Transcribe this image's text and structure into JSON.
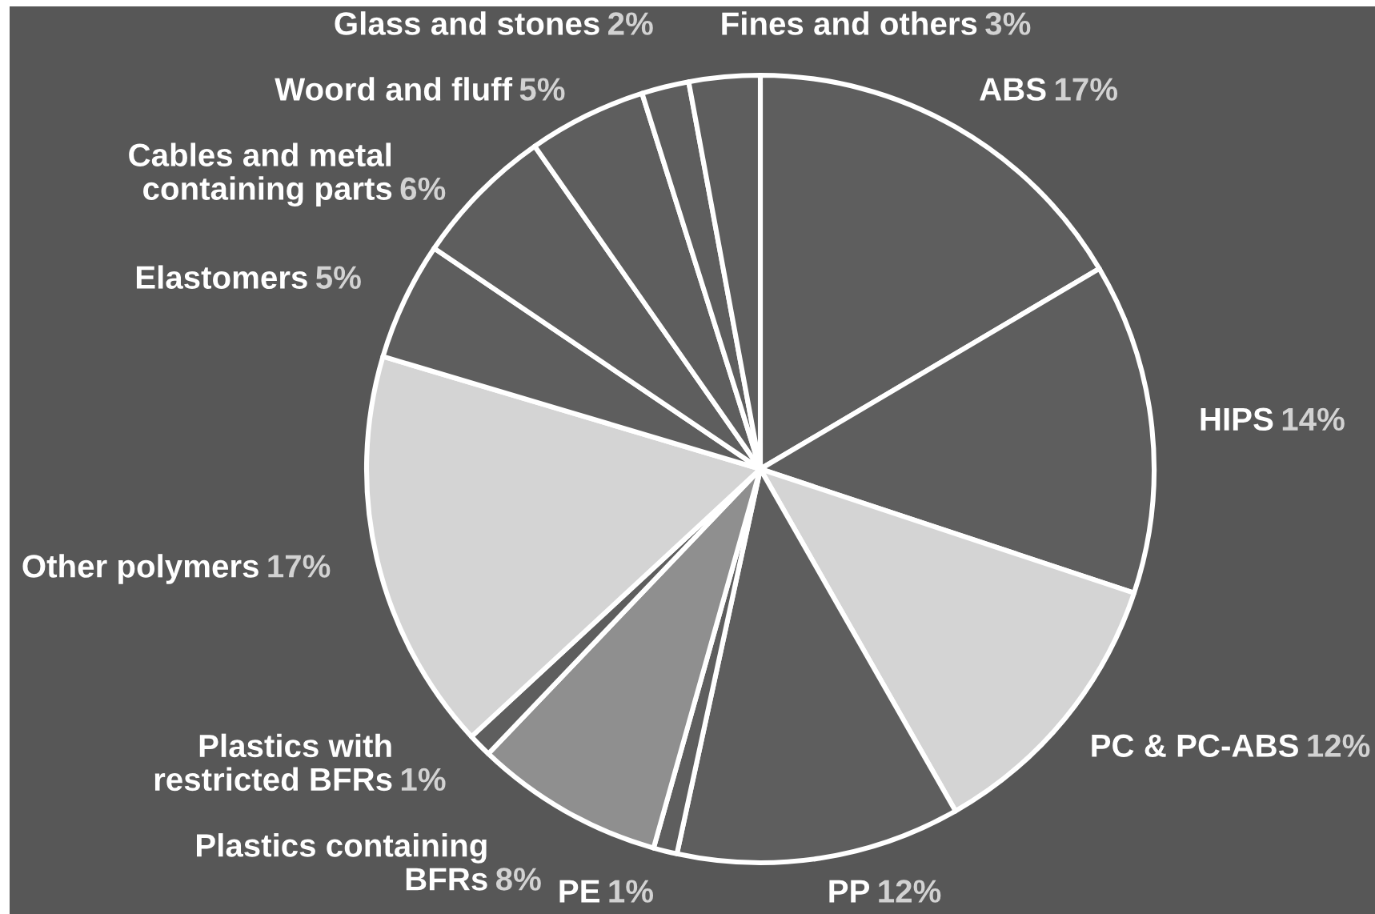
{
  "chart_data": {
    "type": "pie",
    "categories": [
      "ABS",
      "HIPS",
      "PC & PC-ABS",
      "PP",
      "PE",
      "Plastics containing\nBFRs",
      "Plastics with\nrestricted BFRs",
      "Other polymers",
      "Elastomers",
      "Cables and metal\ncontaining parts",
      "Woord and fluff",
      "Glass and stones",
      "Fines and others"
    ],
    "values": [
      17,
      14,
      12,
      12,
      1,
      8,
      1,
      17,
      5,
      6,
      5,
      2,
      3
    ],
    "value_labels": [
      "17%",
      "14%",
      "12%",
      "12%",
      "1%",
      "8%",
      "1%",
      "17%",
      "5%",
      "6%",
      "5%",
      "2%",
      "3%"
    ],
    "colors": [
      "#5e5e5e",
      "#5e5e5e",
      "#d4d4d4",
      "#5e5e5e",
      "#5e5e5e",
      "#8f8f8f",
      "#5e5e5e",
      "#d4d4d4",
      "#5e5e5e",
      "#5e5e5e",
      "#5e5e5e",
      "#5e5e5e",
      "#5e5e5e"
    ]
  }
}
